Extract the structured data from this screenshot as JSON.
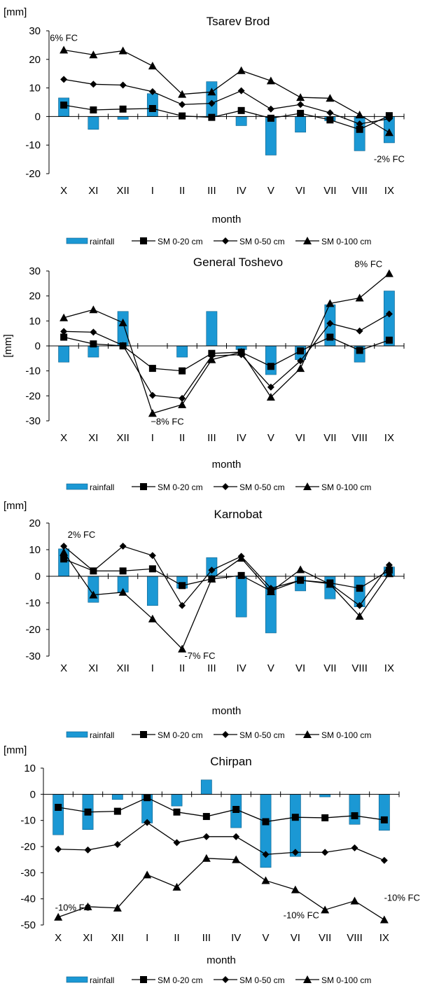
{
  "chart_data": [
    {
      "type": "bar",
      "title": "Tsarev Brod",
      "ylabel": "[mm]",
      "xlabel": "month",
      "ylim": [
        -20,
        30
      ],
      "yticks": [
        30,
        20,
        10,
        0,
        -10,
        -20
      ],
      "categories": [
        "X",
        "XI",
        "XII",
        "I",
        "II",
        "III",
        "IV",
        "V",
        "VI",
        "VII",
        "VIII",
        "IX"
      ],
      "series": [
        {
          "name": "rainfall",
          "kind": "bar",
          "color": "#1b98d4",
          "values": [
            6.5,
            -4.5,
            -1,
            8,
            0,
            12.2,
            -3.2,
            -13.5,
            -5.5,
            -1.5,
            -12,
            -9.2
          ]
        },
        {
          "name": "SM 0-20 cm",
          "kind": "line",
          "marker": "square",
          "values": [
            4,
            2.3,
            2.6,
            2.8,
            0.2,
            -0.3,
            2.1,
            -0.6,
            1.1,
            -1.2,
            -4.5,
            0.3
          ]
        },
        {
          "name": "SM 0-50 cm",
          "kind": "line",
          "marker": "diamond",
          "values": [
            13,
            11.3,
            11,
            8.7,
            4.2,
            4.6,
            9,
            2.6,
            4.2,
            1.3,
            -2.6,
            -0.8
          ]
        },
        {
          "name": "SM 0-100 cm",
          "kind": "line",
          "marker": "triangle",
          "values": [
            23.3,
            21.6,
            23,
            17.7,
            7.8,
            8.6,
            16.1,
            12.5,
            6.7,
            6.4,
            0.6,
            -5.6
          ]
        }
      ],
      "annotations": [
        {
          "text": "6% FC",
          "index": 0,
          "value": 26.5
        },
        {
          "text": "-2% FC",
          "index": 11,
          "value": -16
        }
      ],
      "legend_position": "bottom"
    },
    {
      "type": "bar",
      "title": "General Toshevo",
      "ylabel": "[mm]",
      "xlabel": "month",
      "ylim": [
        -30,
        30
      ],
      "yticks": [
        30,
        20,
        10,
        0,
        -10,
        -20,
        -30
      ],
      "categories": [
        "X",
        "XI",
        "XII",
        "I",
        "II",
        "III",
        "IV",
        "V",
        "VI",
        "VII",
        "VIII",
        "IX"
      ],
      "series": [
        {
          "name": "rainfall",
          "kind": "bar",
          "color": "#1b98d4",
          "values": [
            -6.5,
            -4.5,
            13.8,
            0,
            -4.5,
            13.8,
            -1.5,
            -11.5,
            -5.5,
            16.5,
            -6.5,
            22
          ]
        },
        {
          "name": "SM 0-20 cm",
          "kind": "line",
          "marker": "square",
          "values": [
            3.5,
            0.8,
            0,
            -9,
            -10,
            -3,
            -2.5,
            -8.2,
            -2,
            3.5,
            -1.8,
            2.3
          ]
        },
        {
          "name": "SM 0-50 cm",
          "kind": "line",
          "marker": "diamond",
          "values": [
            5.8,
            5.5,
            0.2,
            -19.8,
            -21,
            -4,
            -3.5,
            -16.5,
            -6,
            9,
            6,
            12.8
          ]
        },
        {
          "name": "SM 0-100 cm",
          "kind": "line",
          "marker": "triangle",
          "values": [
            11.3,
            14.5,
            9.3,
            -27,
            -23.5,
            -5.5,
            -2.5,
            -20.5,
            -9,
            17,
            19.2,
            29
          ]
        }
      ],
      "annotations": [
        {
          "text": "−8% FC",
          "index": 3.5,
          "value": -31.5
        },
        {
          "text": "8% FC",
          "index": 10.3,
          "value": 31.5
        }
      ],
      "legend_position": "bottom"
    },
    {
      "type": "bar",
      "title": "Karnobat",
      "ylabel": "[mm]",
      "xlabel": "month",
      "ylim": [
        -30,
        20
      ],
      "yticks": [
        20,
        10,
        0,
        -10,
        -20,
        -30
      ],
      "categories": [
        "X",
        "XI",
        "XII",
        "I",
        "II",
        "III",
        "IV",
        "V",
        "VI",
        "VII",
        "VIII",
        "IX"
      ],
      "series": [
        {
          "name": "rainfall",
          "kind": "bar",
          "color": "#1b98d4",
          "values": [
            10.3,
            -9.8,
            -6,
            -11,
            -4.5,
            7,
            -15.3,
            -21.3,
            -5.5,
            -8.5,
            -11.5,
            3.5
          ]
        },
        {
          "name": "SM 0-20 cm",
          "kind": "line",
          "marker": "square",
          "values": [
            6.5,
            2,
            2,
            2.8,
            -3.5,
            -1,
            0.3,
            -5.5,
            -1.5,
            -2.5,
            -4.5,
            2.3
          ]
        },
        {
          "name": "SM 0-50 cm",
          "kind": "line",
          "marker": "diamond",
          "values": [
            11.3,
            2,
            11.3,
            7.8,
            -11,
            2.3,
            7.5,
            -4.5,
            -1.5,
            -2.8,
            -11,
            4.2
          ]
        },
        {
          "name": "SM 0-100 cm",
          "kind": "line",
          "marker": "triangle",
          "values": [
            9,
            -7,
            -6,
            -16,
            -27.3,
            -1,
            6.8,
            -5.8,
            2.5,
            -3,
            -15,
            1
          ]
        }
      ],
      "annotations": [
        {
          "text": "2% FC",
          "index": 0.6,
          "value": 14.5
        },
        {
          "text": "-7% FC",
          "index": 4.6,
          "value": -31
        }
      ],
      "legend_position": "bottom"
    },
    {
      "type": "bar",
      "title": "Chirpan",
      "ylabel": "[mm]",
      "xlabel": "month",
      "ylim": [
        -50,
        10
      ],
      "yticks": [
        10,
        0,
        -10,
        -20,
        -30,
        -40,
        -50
      ],
      "categories": [
        "X",
        "XI",
        "XII",
        "I",
        "II",
        "III",
        "IV",
        "V",
        "VI",
        "VII",
        "VIII",
        "IX"
      ],
      "series": [
        {
          "name": "rainfall",
          "kind": "bar",
          "color": "#1b98d4",
          "values": [
            -15.5,
            -13.5,
            -2,
            -11,
            -4.5,
            5.5,
            -12.8,
            -28,
            -23.8,
            -1,
            -11.5,
            -13.8
          ]
        },
        {
          "name": "SM 0-20 cm",
          "kind": "line",
          "marker": "square",
          "values": [
            -5,
            -6.8,
            -6.5,
            -1.3,
            -6.8,
            -8.5,
            -5.8,
            -10.5,
            -8.8,
            -9,
            -8.2,
            -9.8
          ]
        },
        {
          "name": "SM 0-50 cm",
          "kind": "line",
          "marker": "diamond",
          "values": [
            -21,
            -21.3,
            -19.2,
            -10.8,
            -18.5,
            -16.2,
            -16.2,
            -23,
            -22.2,
            -22.2,
            -20.5,
            -25.3
          ]
        },
        {
          "name": "SM 0-100 cm",
          "kind": "line",
          "marker": "triangle",
          "values": [
            -47,
            -43,
            -43.5,
            -30.8,
            -35.5,
            -24.5,
            -25,
            -33,
            -36.5,
            -44.2,
            -40.8,
            -48
          ]
        }
      ],
      "annotations": [
        {
          "text": "-10% FC",
          "index": 0.5,
          "value": -44.5
        },
        {
          "text": "-10% FC",
          "index": 8.2,
          "value": -47.5
        },
        {
          "text": "-10% FC",
          "index": 11.6,
          "value": -40.8
        }
      ],
      "legend_position": "bottom"
    }
  ]
}
